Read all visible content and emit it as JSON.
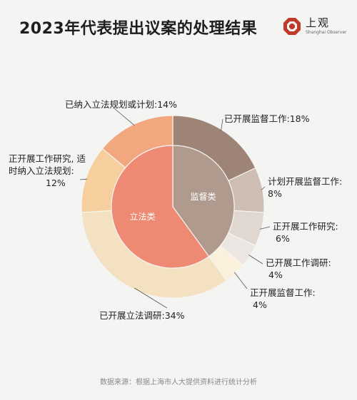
{
  "header": {
    "title": "2023年代表提出议案的处理结果",
    "logo_text": "上观",
    "logo_subtext": "Shanghai Observer"
  },
  "chart_data": {
    "type": "pie",
    "subtype": "nested-donut",
    "inner": [
      {
        "name": "监督类",
        "value": 40,
        "color": "#b09a8e"
      },
      {
        "name": "立法类",
        "value": 60,
        "color": "#ee8a73"
      }
    ],
    "outer": [
      {
        "name": "已开展监督工作",
        "value": 18,
        "color": "#9d8477",
        "label": "已开展监督工作:18%"
      },
      {
        "name": "计划开展监督工作",
        "value": 8,
        "color": "#cdbdb3",
        "label": "计划开展监督工作:8%"
      },
      {
        "name": "正开展工作研究",
        "value": 6,
        "color": "#e1d7d1",
        "label": "正开展工作研究:6%"
      },
      {
        "name": "已开展工作调研",
        "value": 4,
        "color": "#ece6e3",
        "label": "已开展工作调研:4%"
      },
      {
        "name": "正开展监督工作",
        "value": 4,
        "color": "#fbf0dc",
        "label": "正开展监督工作:4%"
      },
      {
        "name": "已开展立法调研",
        "value": 34,
        "color": "#f4e1c2",
        "label": "已开展立法调研:34%"
      },
      {
        "name": "正开展工作研究，适时纳入立法规划",
        "value": 12,
        "color": "#f7cf9f",
        "label": "正开展工作研究, 适时纳入立法规划:12%"
      },
      {
        "name": "已纳入立法规划或计划",
        "value": 14,
        "color": "#f3a77f",
        "label": "已纳入立法规划或计划:14%"
      }
    ]
  },
  "labels": {
    "l1": "已纳入立法规划或计划:14%",
    "l2a": "已开展监督工作:18%",
    "l3a": "正开展工作研究, 适",
    "l3b": "时纳入立法规划:",
    "l3c": "12%",
    "l4a": "计划开展监督工作:",
    "l4b": "8%",
    "l5a": "正开展工作研究:",
    "l5b": "6%",
    "l6a": "已开展工作调研:",
    "l6b": "4%",
    "l7a": "正开展监督工作:",
    "l7b": "4%",
    "l8": "已开展立法调研:34%"
  },
  "source": "数据来源：根据上海市人大提供资料进行统计分析"
}
